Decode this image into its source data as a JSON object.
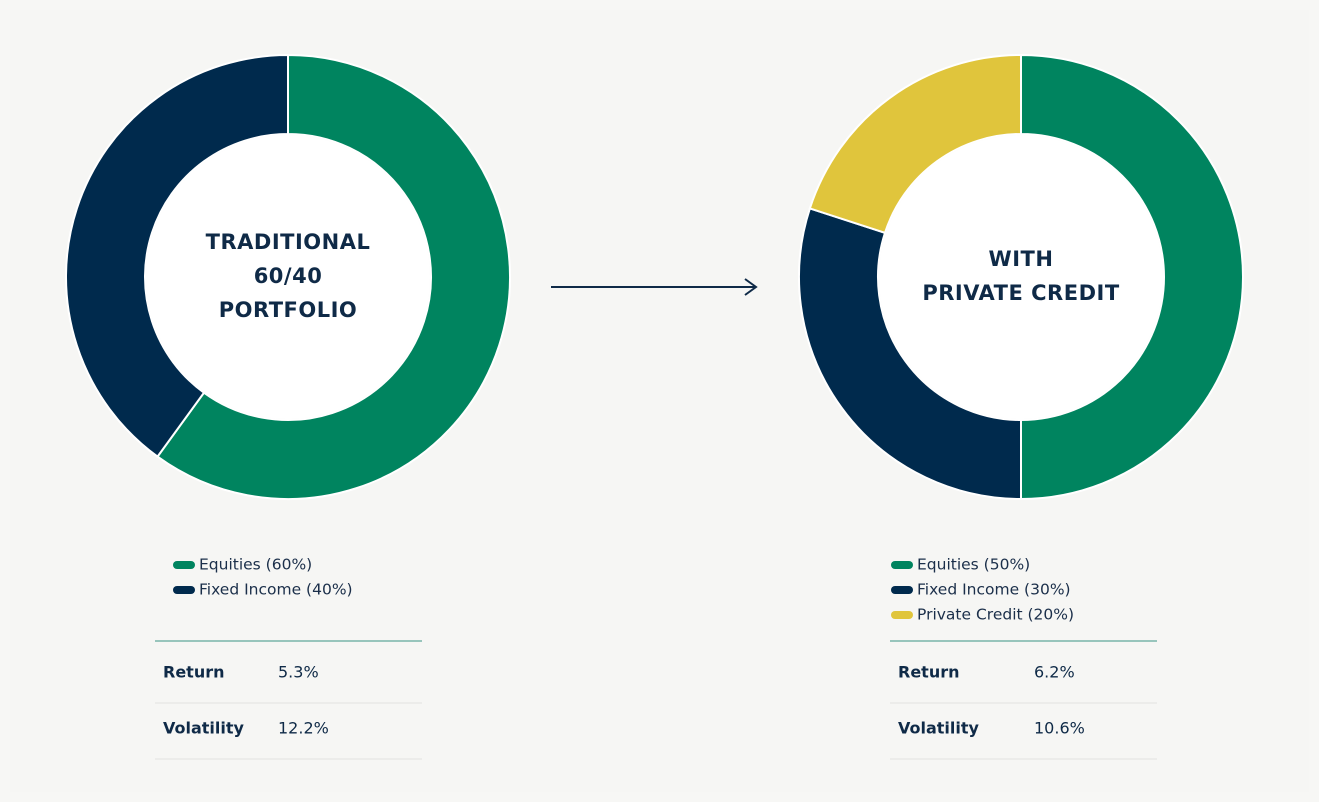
{
  "chart_data": [
    {
      "type": "pie",
      "donut": true,
      "title": [
        "TRADITIONAL",
        "60/40",
        "PORTFOLIO"
      ],
      "categories": [
        "Equities (60%)",
        "Fixed Income (40%)"
      ],
      "values": [
        60,
        40
      ],
      "colors": [
        "#00845f",
        "#002a4d"
      ],
      "stats": [
        [
          "Return",
          "5.3%"
        ],
        [
          "Volatility",
          "12.2%"
        ]
      ]
    },
    {
      "type": "pie",
      "donut": true,
      "title": [
        "WITH",
        "PRIVATE CREDIT"
      ],
      "categories": [
        "Equities (50%)",
        "Fixed Income (30%)",
        "Private Credit (20%)"
      ],
      "values": [
        50,
        30,
        20
      ],
      "colors": [
        "#00845f",
        "#002a4d",
        "#e0c53c"
      ],
      "stats": [
        [
          "Return",
          "6.2%"
        ],
        [
          "Volatility",
          "10.6%"
        ]
      ]
    }
  ]
}
